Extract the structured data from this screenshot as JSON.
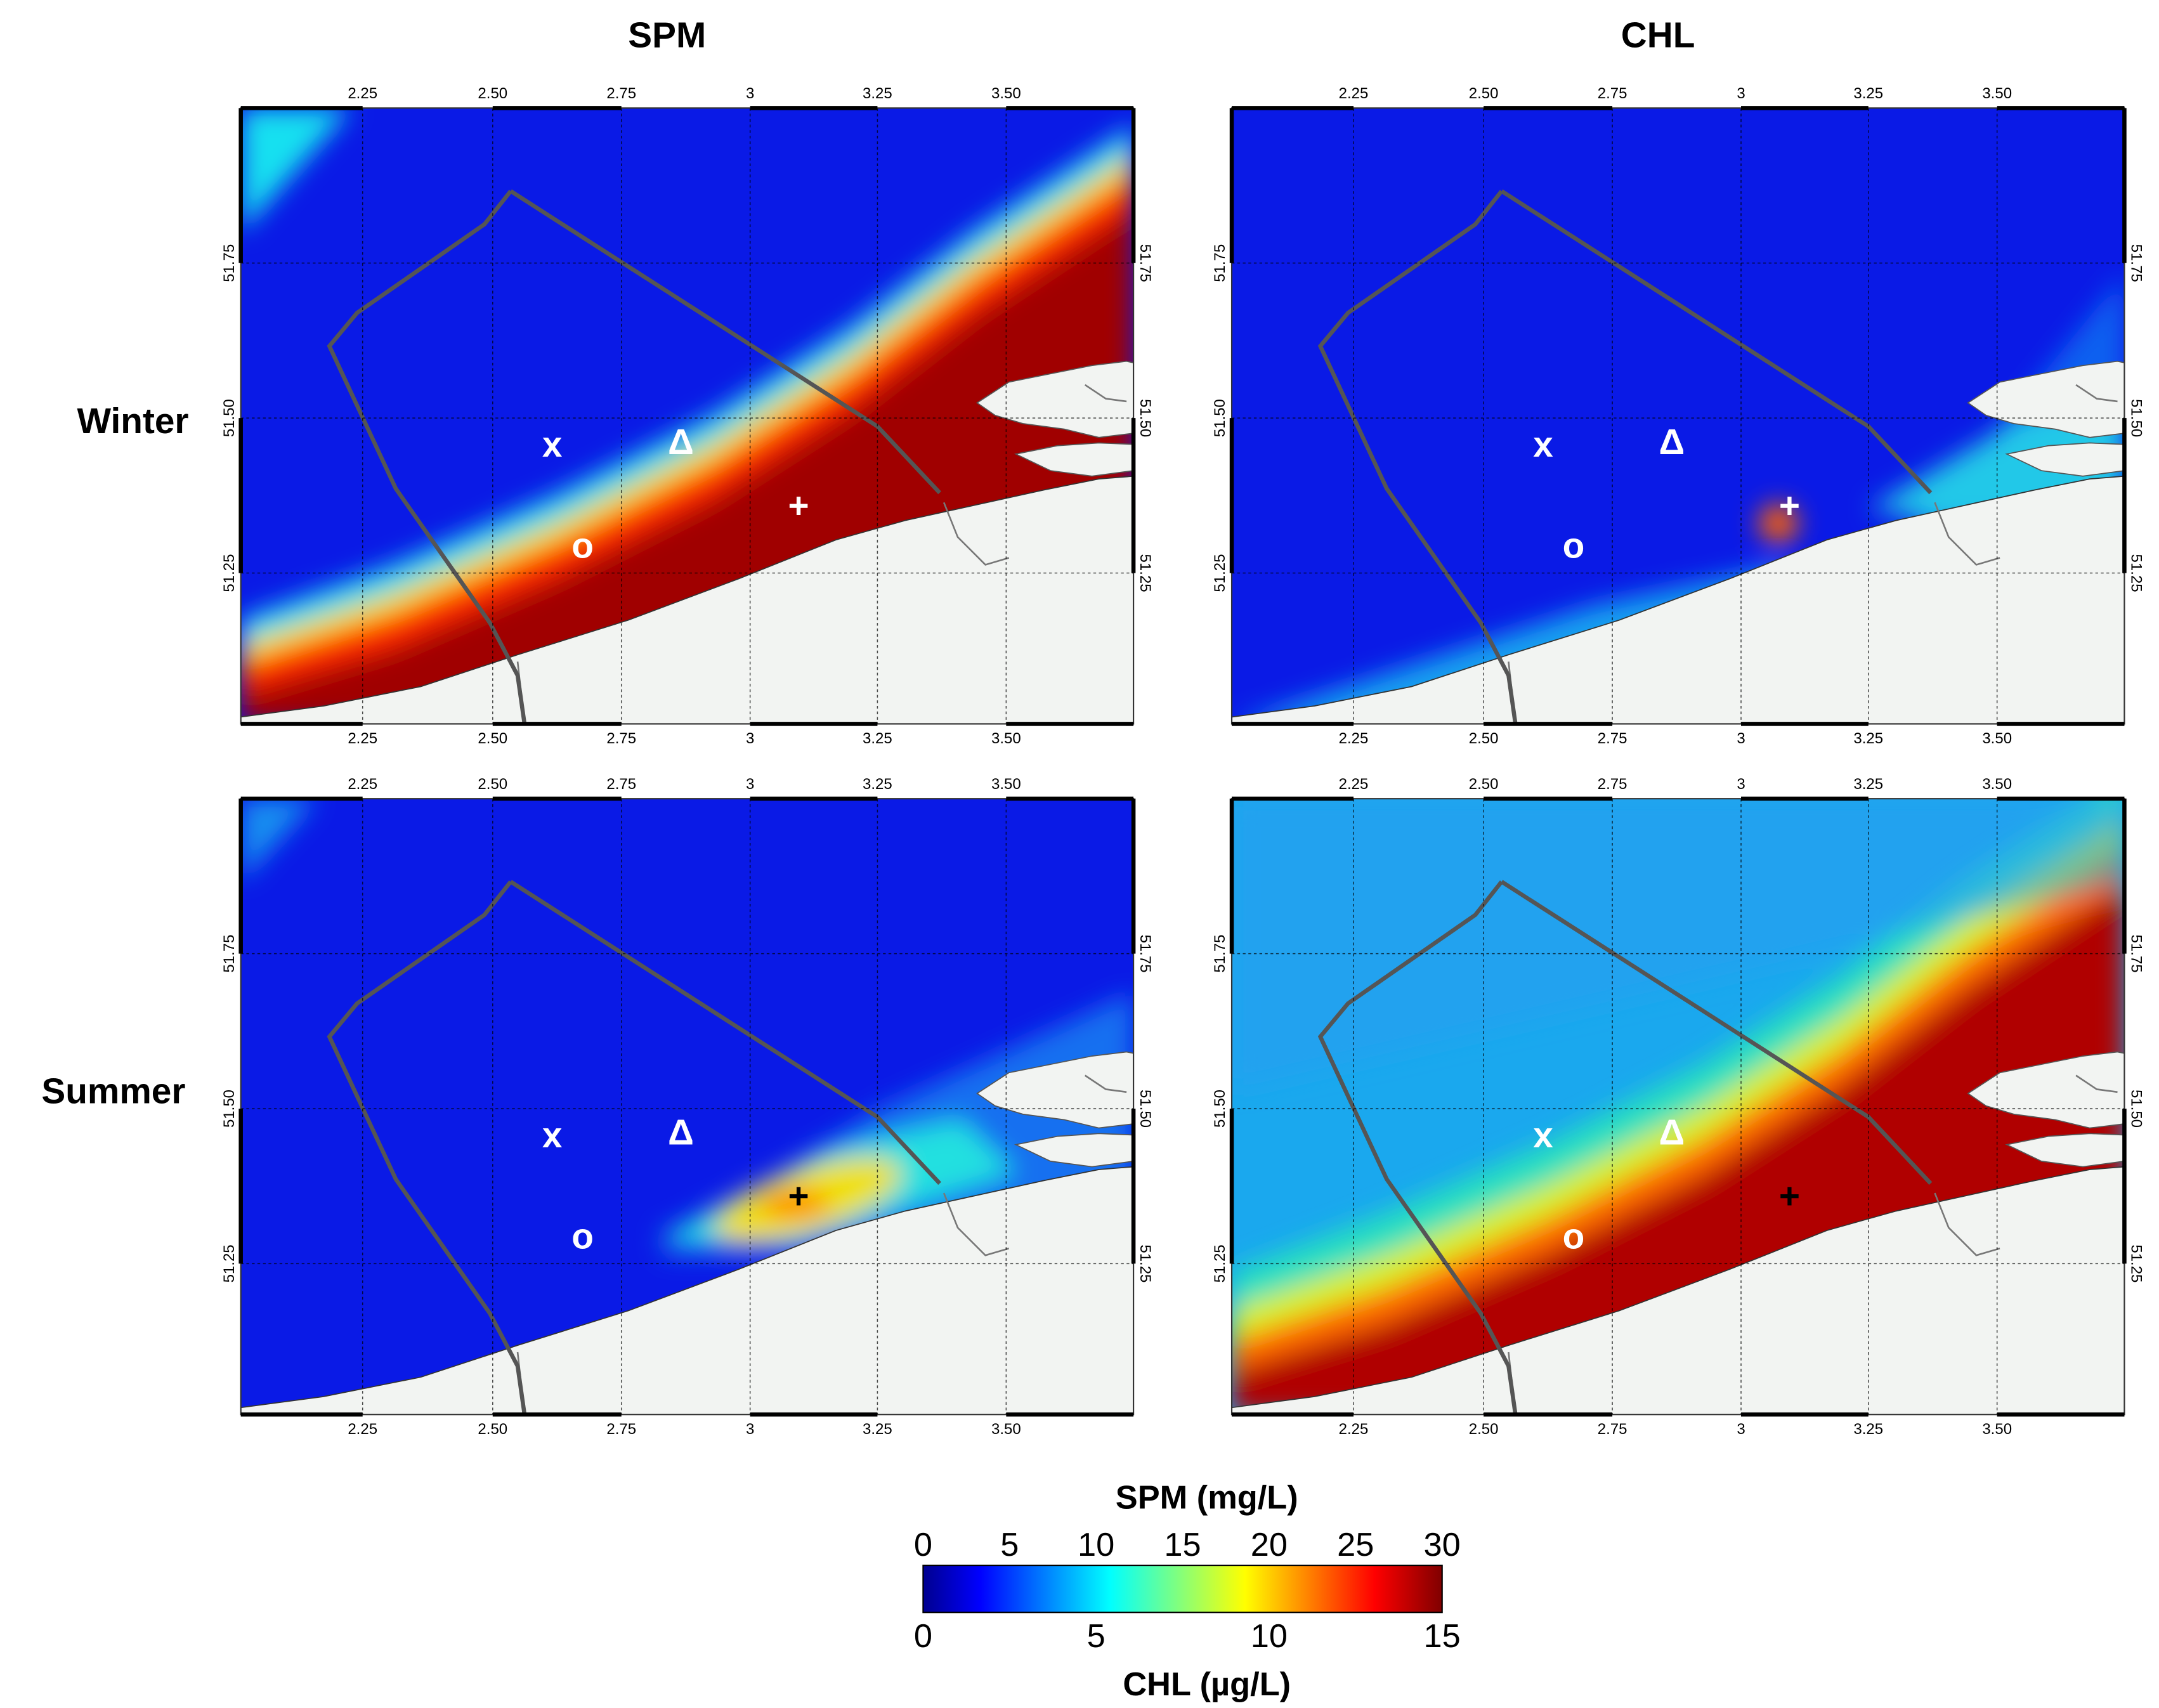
{
  "columns": {
    "left": "SPM",
    "right": "CHL"
  },
  "rows": {
    "top": "Winter",
    "bottom": "Summer"
  },
  "axes": {
    "lon_ticks": [
      "2.25",
      "2.50",
      "2.75",
      "3",
      "3.25",
      "3.50"
    ],
    "lat_ticks": [
      "51.75",
      "51.50",
      "51.25"
    ]
  },
  "colorbar": {
    "top_title": "SPM (mg/L)",
    "top_ticks": [
      "0",
      "5",
      "10",
      "15",
      "20",
      "25",
      "30"
    ],
    "bottom_title": "CHL (µg/L)",
    "bottom_ticks": [
      "0",
      "5",
      "10",
      "15"
    ]
  },
  "stations": {
    "x": "x",
    "delta": "Δ",
    "o": "o",
    "plus": "+"
  },
  "colors": {
    "low": "#0a1ae6",
    "mid": "#1ee6e6",
    "high": "#f5dc0a",
    "max": "#a00000",
    "land": "#f2f4f2",
    "boundary": "#555555"
  },
  "chart_data": [
    {
      "panel": "SPM-Winter",
      "type": "heatmap",
      "variable": "SPM",
      "units": "mg/L",
      "season": "Winter",
      "range": [
        0,
        30
      ],
      "description_values": {
        "offshore": 2,
        "coastal_band": 30
      }
    },
    {
      "panel": "CHL-Winter",
      "type": "heatmap",
      "variable": "CHL",
      "units": "µg/L",
      "season": "Winter",
      "range": [
        0,
        15
      ],
      "description_values": {
        "offshore": 1,
        "coastal_band": 4
      }
    },
    {
      "panel": "SPM-Summer",
      "type": "heatmap",
      "variable": "SPM",
      "units": "mg/L",
      "season": "Summer",
      "range": [
        0,
        30
      ],
      "description_values": {
        "offshore": 1,
        "coastal_band": 18
      }
    },
    {
      "panel": "CHL-Summer",
      "type": "heatmap",
      "variable": "CHL",
      "units": "µg/L",
      "season": "Summer",
      "range": [
        0,
        15
      ],
      "description_values": {
        "offshore": 5,
        "coastal_band": 15
      }
    }
  ]
}
